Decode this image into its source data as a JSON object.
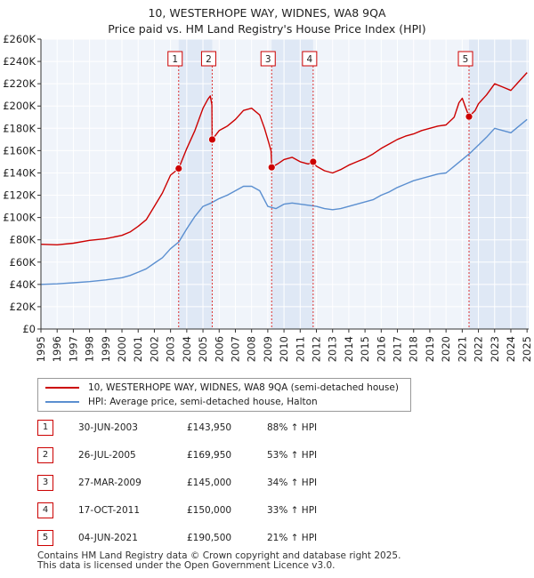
{
  "title_line1": "10, WESTERHOPE WAY, WIDNES, WA8 9QA",
  "title_line2": "Price paid vs. HM Land Registry's House Price Index (HPI)",
  "chart_data": {
    "type": "line",
    "title": "10, WESTERHOPE WAY, WIDNES, WA8 9QA — Price paid vs. HM Land Registry's House Price Index (HPI)",
    "xlim": [
      1995,
      2025.1
    ],
    "ylim": [
      0,
      260000
    ],
    "y_ticks": [
      0,
      20000,
      40000,
      60000,
      80000,
      100000,
      120000,
      140000,
      160000,
      180000,
      200000,
      220000,
      240000,
      260000
    ],
    "y_tick_labels": [
      "£0",
      "£20K",
      "£40K",
      "£60K",
      "£80K",
      "£100K",
      "£120K",
      "£140K",
      "£160K",
      "£180K",
      "£200K",
      "£220K",
      "£240K",
      "£260K"
    ],
    "x_ticks": [
      1995,
      1996,
      1997,
      1998,
      1999,
      2000,
      2001,
      2002,
      2003,
      2004,
      2005,
      2006,
      2007,
      2008,
      2009,
      2010,
      2011,
      2012,
      2013,
      2014,
      2015,
      2016,
      2017,
      2018,
      2019,
      2020,
      2021,
      2022,
      2023,
      2024,
      2025
    ],
    "grid": true,
    "series": [
      {
        "name": "10, WESTERHOPE WAY, WIDNES, WA8 9QA (semi-detached house)",
        "color": "#cc0000",
        "points": [
          [
            1995.0,
            76000
          ],
          [
            1996.0,
            75500
          ],
          [
            1997.0,
            77000
          ],
          [
            1998.0,
            79500
          ],
          [
            1999.0,
            81000
          ],
          [
            2000.0,
            84000
          ],
          [
            2000.5,
            87000
          ],
          [
            2001.0,
            92000
          ],
          [
            2001.5,
            98000
          ],
          [
            2002.0,
            110000
          ],
          [
            2002.5,
            122000
          ],
          [
            2003.0,
            138000
          ],
          [
            2003.5,
            143950
          ],
          [
            2004.0,
            162000
          ],
          [
            2004.5,
            178000
          ],
          [
            2005.0,
            198000
          ],
          [
            2005.3,
            206000
          ],
          [
            2005.45,
            209000
          ],
          [
            2005.55,
            201000
          ],
          [
            2005.57,
            169950
          ],
          [
            2006.0,
            178000
          ],
          [
            2006.5,
            182000
          ],
          [
            2007.0,
            188000
          ],
          [
            2007.5,
            196000
          ],
          [
            2008.0,
            198000
          ],
          [
            2008.5,
            192000
          ],
          [
            2008.8,
            180000
          ],
          [
            2009.0,
            170000
          ],
          [
            2009.2,
            160000
          ],
          [
            2009.24,
            145000
          ],
          [
            2009.6,
            148000
          ],
          [
            2010.0,
            152000
          ],
          [
            2010.5,
            154000
          ],
          [
            2011.0,
            150000
          ],
          [
            2011.5,
            148000
          ],
          [
            2011.8,
            150000
          ],
          [
            2012.0,
            146000
          ],
          [
            2012.5,
            142000
          ],
          [
            2013.0,
            140000
          ],
          [
            2013.5,
            143000
          ],
          [
            2014.0,
            147000
          ],
          [
            2014.5,
            150000
          ],
          [
            2015.0,
            153000
          ],
          [
            2015.5,
            157000
          ],
          [
            2016.0,
            162000
          ],
          [
            2016.5,
            166000
          ],
          [
            2017.0,
            170000
          ],
          [
            2017.5,
            173000
          ],
          [
            2018.0,
            175000
          ],
          [
            2018.5,
            178000
          ],
          [
            2019.0,
            180000
          ],
          [
            2019.5,
            182000
          ],
          [
            2020.0,
            183000
          ],
          [
            2020.5,
            190000
          ],
          [
            2020.8,
            203000
          ],
          [
            2021.0,
            207000
          ],
          [
            2021.2,
            199000
          ],
          [
            2021.42,
            190500
          ],
          [
            2021.8,
            196000
          ],
          [
            2022.0,
            202000
          ],
          [
            2022.5,
            210000
          ],
          [
            2023.0,
            220000
          ],
          [
            2023.5,
            217000
          ],
          [
            2024.0,
            214000
          ],
          [
            2024.5,
            222000
          ],
          [
            2025.0,
            230000
          ]
        ]
      },
      {
        "name": "HPI: Average price, semi-detached house, Halton",
        "color": "#5b8fd0",
        "points": [
          [
            1995.0,
            40000
          ],
          [
            1996.0,
            40500
          ],
          [
            1997.0,
            41500
          ],
          [
            1998.0,
            42500
          ],
          [
            1999.0,
            44000
          ],
          [
            2000.0,
            46000
          ],
          [
            2000.5,
            48000
          ],
          [
            2001.0,
            51000
          ],
          [
            2001.5,
            54000
          ],
          [
            2002.0,
            59000
          ],
          [
            2002.5,
            64000
          ],
          [
            2003.0,
            72000
          ],
          [
            2003.5,
            78000
          ],
          [
            2004.0,
            90000
          ],
          [
            2004.5,
            101000
          ],
          [
            2005.0,
            110000
          ],
          [
            2005.5,
            113000
          ],
          [
            2006.0,
            117000
          ],
          [
            2006.5,
            120000
          ],
          [
            2007.0,
            124000
          ],
          [
            2007.5,
            128000
          ],
          [
            2008.0,
            128000
          ],
          [
            2008.5,
            124000
          ],
          [
            2009.0,
            110000
          ],
          [
            2009.5,
            108000
          ],
          [
            2010.0,
            112000
          ],
          [
            2010.5,
            113000
          ],
          [
            2011.0,
            112000
          ],
          [
            2011.5,
            111000
          ],
          [
            2012.0,
            110000
          ],
          [
            2012.5,
            108000
          ],
          [
            2013.0,
            107000
          ],
          [
            2013.5,
            108000
          ],
          [
            2014.0,
            110000
          ],
          [
            2014.5,
            112000
          ],
          [
            2015.0,
            114000
          ],
          [
            2015.5,
            116000
          ],
          [
            2016.0,
            120000
          ],
          [
            2016.5,
            123000
          ],
          [
            2017.0,
            127000
          ],
          [
            2017.5,
            130000
          ],
          [
            2018.0,
            133000
          ],
          [
            2018.5,
            135000
          ],
          [
            2019.0,
            137000
          ],
          [
            2019.5,
            139000
          ],
          [
            2020.0,
            140000
          ],
          [
            2020.5,
            146000
          ],
          [
            2021.0,
            152000
          ],
          [
            2021.5,
            158000
          ],
          [
            2022.0,
            165000
          ],
          [
            2022.5,
            172000
          ],
          [
            2023.0,
            180000
          ],
          [
            2023.5,
            178000
          ],
          [
            2024.0,
            176000
          ],
          [
            2024.5,
            182000
          ],
          [
            2025.0,
            188000
          ]
        ]
      }
    ],
    "sales": [
      {
        "id": "1",
        "x": 2003.5,
        "price": 143950
      },
      {
        "id": "2",
        "x": 2005.57,
        "price": 169950
      },
      {
        "id": "3",
        "x": 2009.24,
        "price": 145000
      },
      {
        "id": "4",
        "x": 2011.8,
        "price": 150000
      },
      {
        "id": "5",
        "x": 2021.42,
        "price": 190500
      }
    ],
    "shaded_periods": [
      [
        2003.5,
        2005.57
      ],
      [
        2009.24,
        2011.8
      ],
      [
        2021.42,
        2025.1
      ]
    ]
  },
  "legend": {
    "property": "10, WESTERHOPE WAY, WIDNES, WA8 9QA (semi-detached house)",
    "hpi": "HPI: Average price, semi-detached house, Halton",
    "property_color": "#cc0000",
    "hpi_color": "#5b8fd0"
  },
  "sales_table": [
    {
      "id": "1",
      "date": "30-JUN-2003",
      "price": "£143,950",
      "hpi": "88% ↑ HPI"
    },
    {
      "id": "2",
      "date": "26-JUL-2005",
      "price": "£169,950",
      "hpi": "53% ↑ HPI"
    },
    {
      "id": "3",
      "date": "27-MAR-2009",
      "price": "£145,000",
      "hpi": "34% ↑ HPI"
    },
    {
      "id": "4",
      "date": "17-OCT-2011",
      "price": "£150,000",
      "hpi": "33% ↑ HPI"
    },
    {
      "id": "5",
      "date": "04-JUN-2021",
      "price": "£190,500",
      "hpi": "21% ↑ HPI"
    }
  ],
  "footer": {
    "line1": "Contains HM Land Registry data © Crown copyright and database right 2025.",
    "line2": "This data is licensed under the Open Government Licence v3.0."
  }
}
